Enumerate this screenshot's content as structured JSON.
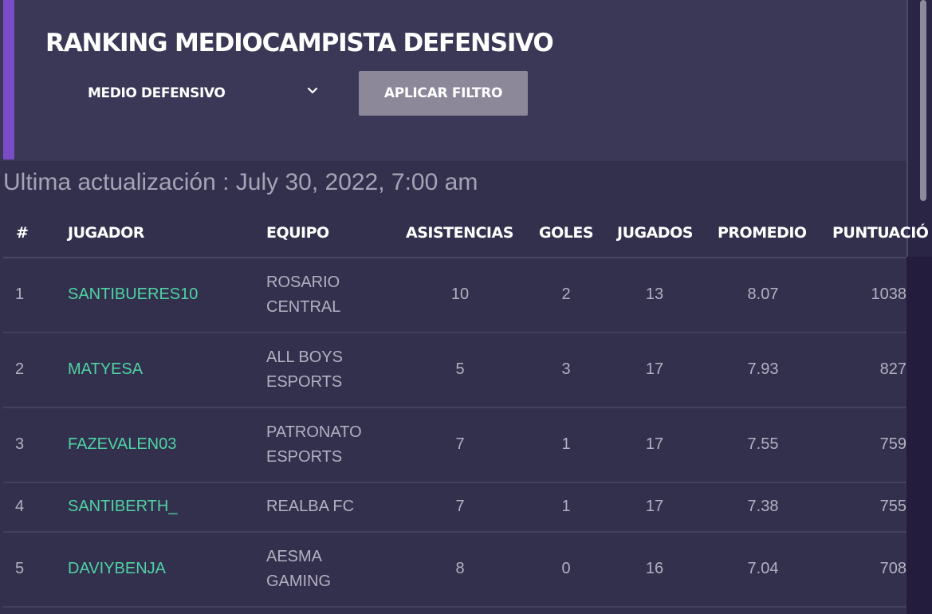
{
  "header": {
    "title": "RANKING MEDIOCAMPISTA DEFENSIVO",
    "position_select": "MEDIO DEFENSIVO",
    "apply_button": "APLICAR FILTRO",
    "accent_color": "#7a4dc7"
  },
  "updated": "Ultima actualización : July 30, 2022, 7:00 am",
  "table": {
    "columns": {
      "rank": "#",
      "player": "JUGADOR",
      "team": "EQUIPO",
      "assists": "ASISTENCIAS",
      "goals": "GOLES",
      "played": "JUGADOS",
      "average": "PROMEDIO",
      "score": "PUNTUACIÓ"
    },
    "rows": [
      {
        "rank": "1",
        "player": "SANTIBUERES10",
        "team": "ROSARIO CENTRAL",
        "assists": "10",
        "goals": "2",
        "played": "13",
        "average": "8.07",
        "score": "1038"
      },
      {
        "rank": "2",
        "player": "MATYESA",
        "team": "ALL BOYS ESPORTS",
        "assists": "5",
        "goals": "3",
        "played": "17",
        "average": "7.93",
        "score": "827"
      },
      {
        "rank": "3",
        "player": "FAZEVALEN03",
        "team": "PATRONATO ESPORTS",
        "assists": "7",
        "goals": "1",
        "played": "17",
        "average": "7.55",
        "score": "759"
      },
      {
        "rank": "4",
        "player": "SANTIBERTH_",
        "team": "REALBA FC",
        "assists": "7",
        "goals": "1",
        "played": "17",
        "average": "7.38",
        "score": "755"
      },
      {
        "rank": "5",
        "player": "DAVIYBENJA",
        "team": "AESMA GAMING",
        "assists": "8",
        "goals": "0",
        "played": "16",
        "average": "7.04",
        "score": "708"
      }
    ],
    "player_color": "#4fd3a4"
  },
  "icons": {
    "select_chevron": "chevron-down-icon"
  }
}
